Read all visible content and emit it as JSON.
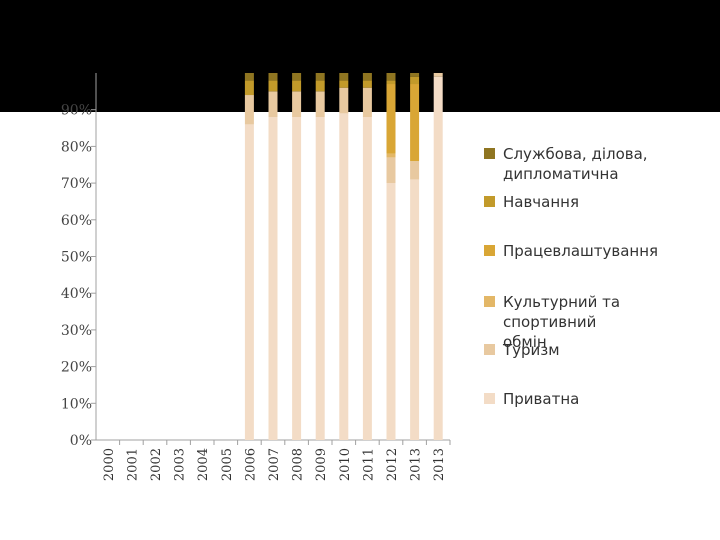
{
  "chart_data": {
    "type": "bar",
    "stacked": true,
    "percent": true,
    "categories": [
      "2000",
      "2001",
      "2002",
      "2003",
      "2004",
      "2005",
      "2006",
      "2007",
      "2008",
      "2009",
      "2010",
      "2011",
      "2012",
      "2013",
      "2013"
    ],
    "y_ticks": [
      "0%",
      "10%",
      "20%",
      "30%",
      "40%",
      "50%",
      "60%",
      "70%",
      "80%",
      "90%"
    ],
    "ylim": [
      0,
      100
    ],
    "series": [
      {
        "name": "Приватна",
        "color": "#f3dcc6",
        "values": [
          0,
          0,
          0,
          0,
          0,
          0,
          86,
          88,
          88,
          88,
          89,
          88,
          70,
          71,
          99
        ]
      },
      {
        "name": "Туризм",
        "color": "#e8c9a0",
        "values": [
          0,
          0,
          0,
          0,
          0,
          0,
          8,
          7,
          7,
          7,
          7,
          8,
          7,
          5,
          1
        ]
      },
      {
        "name": "Культурний та спортивний обмін",
        "color": "#e3b767",
        "values": [
          0,
          0,
          0,
          0,
          0,
          0,
          0,
          0,
          0,
          0,
          0,
          0,
          1,
          0,
          0
        ]
      },
      {
        "name": "Працевлаштування",
        "color": "#d9a635",
        "values": [
          0,
          0,
          0,
          0,
          0,
          0,
          0,
          0,
          0,
          0,
          0,
          0,
          19,
          21,
          0
        ]
      },
      {
        "name": "Навчання",
        "color": "#c29a2a",
        "values": [
          0,
          0,
          0,
          0,
          0,
          0,
          4,
          3,
          3,
          3,
          2,
          2,
          1,
          2,
          0
        ]
      },
      {
        "name": "Службова, ділова, дипломатична",
        "color": "#8f7521",
        "values": [
          0,
          0,
          0,
          0,
          0,
          0,
          2,
          2,
          2,
          2,
          2,
          2,
          2,
          1,
          0
        ]
      }
    ],
    "legend_order": [
      "Службова, ділова, дипломатична",
      "Навчання",
      "Працевлаштування",
      "Культурний та спортивний обмін",
      "Туризм",
      "Приватна"
    ],
    "legend_position": "right",
    "grid": false
  }
}
